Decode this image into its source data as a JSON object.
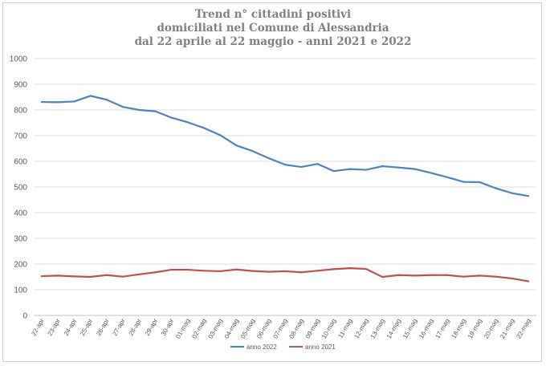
{
  "chart_data": {
    "type": "line",
    "title_lines": [
      "Trend n° cittadini positivi",
      "domiciliati nel Comune di Alessandria",
      "dal 22 aprile al 22 maggio - anni 2021 e 2022"
    ],
    "xlabel": "",
    "ylabel": "",
    "ylim": [
      0,
      1000
    ],
    "yticks": [
      0,
      100,
      200,
      300,
      400,
      500,
      600,
      700,
      800,
      900,
      1000
    ],
    "grid": true,
    "legend_position": "bottom",
    "x": [
      "22-apr",
      "23-apr",
      "24-apr",
      "25-apr",
      "26-apr",
      "27-apr",
      "28-apr",
      "29-apr",
      "30-apr",
      "01-mag",
      "02-mag",
      "03-mag",
      "04-mag",
      "05-mag",
      "06-mag",
      "07-mag",
      "08-mag",
      "09-mag",
      "10-mag",
      "11-mag",
      "12-mag",
      "13-mag",
      "14-mag",
      "15-mag",
      "16-mag",
      "17-mag",
      "18-mag",
      "19-mag",
      "20-mag",
      "21-mag",
      "22-mag"
    ],
    "series": [
      {
        "name": "anno 2022",
        "color": "#4f81bd",
        "values": [
          831,
          830,
          833,
          855,
          840,
          812,
          800,
          795,
          770,
          752,
          730,
          702,
          662,
          640,
          612,
          587,
          578,
          590,
          562,
          570,
          567,
          581,
          576,
          570,
          555,
          538,
          520,
          519,
          495,
          476,
          465
        ]
      },
      {
        "name": "anno 2021",
        "color": "#c0504d",
        "values": [
          153,
          155,
          152,
          150,
          157,
          151,
          160,
          168,
          178,
          178,
          174,
          172,
          179,
          173,
          170,
          172,
          168,
          174,
          180,
          184,
          181,
          150,
          157,
          155,
          157,
          157,
          151,
          155,
          151,
          144,
          133
        ]
      }
    ]
  }
}
